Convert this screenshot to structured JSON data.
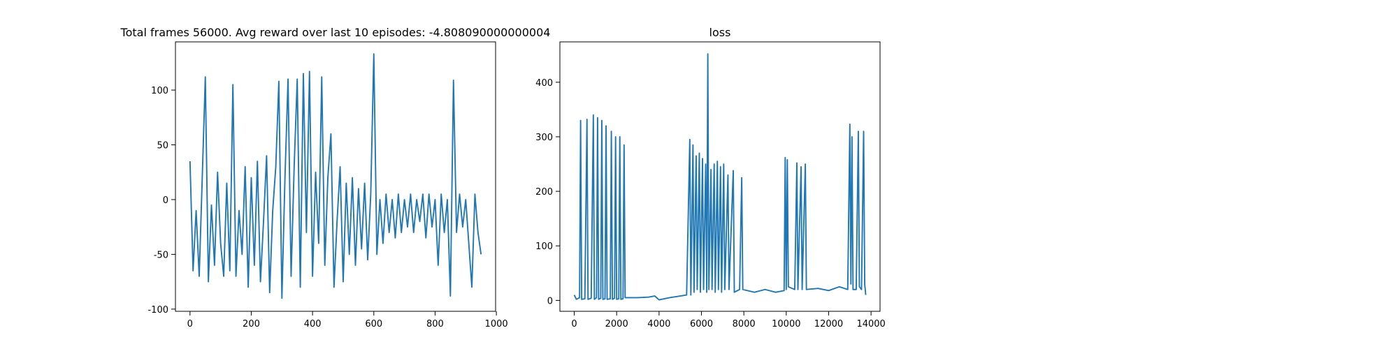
{
  "chart_data": [
    {
      "type": "line",
      "title": "Total frames 56000. Avg reward over last 10 episodes: -4.808090000000004",
      "x": [
        0,
        10,
        20,
        30,
        40,
        50,
        60,
        70,
        80,
        90,
        100,
        110,
        120,
        130,
        140,
        150,
        160,
        170,
        180,
        190,
        200,
        210,
        220,
        230,
        240,
        250,
        260,
        270,
        280,
        290,
        300,
        310,
        320,
        330,
        340,
        350,
        360,
        370,
        380,
        390,
        400,
        410,
        420,
        430,
        440,
        450,
        460,
        470,
        480,
        490,
        500,
        510,
        520,
        530,
        540,
        550,
        560,
        570,
        580,
        590,
        600,
        610,
        620,
        630,
        640,
        650,
        660,
        670,
        680,
        690,
        700,
        710,
        720,
        730,
        740,
        750,
        760,
        770,
        780,
        790,
        800,
        810,
        820,
        830,
        840,
        850,
        860,
        870,
        880,
        890,
        900,
        910,
        920,
        930,
        940,
        950
      ],
      "series": [
        {
          "name": "reward",
          "color": "#1f77b4",
          "values": [
            35,
            -65,
            -10,
            -70,
            20,
            112,
            -75,
            -5,
            -60,
            25,
            -40,
            -70,
            15,
            -65,
            105,
            -70,
            -10,
            -50,
            30,
            -80,
            20,
            -60,
            35,
            -75,
            -20,
            40,
            -85,
            -10,
            30,
            108,
            -90,
            20,
            110,
            -70,
            30,
            110,
            -80,
            115,
            -30,
            117,
            -70,
            25,
            -40,
            112,
            -60,
            20,
            60,
            -80,
            -20,
            30,
            -75,
            15,
            -50,
            20,
            -60,
            10,
            -45,
            15,
            -55,
            5,
            133,
            -50,
            0,
            -40,
            5,
            -30,
            0,
            -35,
            5,
            -30,
            0,
            -25,
            5,
            -30,
            0,
            -20,
            5,
            -35,
            5,
            -25,
            0,
            -60,
            5,
            -30,
            0,
            -88,
            109,
            -30,
            5,
            -25,
            0,
            -40,
            -80,
            5,
            -30,
            -50
          ]
        }
      ],
      "xlim": [
        -47.5,
        997.5
      ],
      "xticks": [
        0,
        200,
        400,
        600,
        800,
        1000
      ],
      "ylim": [
        -102,
        144
      ],
      "yticks": [
        -100,
        -50,
        0,
        50,
        100
      ]
    },
    {
      "type": "line",
      "title": "loss",
      "x": [
        0,
        100,
        250,
        300,
        350,
        500,
        600,
        650,
        800,
        900,
        950,
        1050,
        1100,
        1150,
        1250,
        1300,
        1350,
        1450,
        1500,
        1550,
        1700,
        1750,
        1800,
        1900,
        1950,
        2000,
        2100,
        2150,
        2200,
        2300,
        2350,
        2400,
        3000,
        3500,
        3800,
        4000,
        4500,
        5000,
        5300,
        5450,
        5500,
        5600,
        5650,
        5750,
        5800,
        5900,
        5950,
        6050,
        6100,
        6200,
        6250,
        6300,
        6350,
        6450,
        6500,
        6600,
        6650,
        6750,
        6800,
        6900,
        6950,
        7050,
        7100,
        7250,
        7300,
        7500,
        7550,
        7800,
        7900,
        7950,
        8500,
        9000,
        9500,
        9900,
        9950,
        10000,
        10050,
        10100,
        10400,
        10500,
        10550,
        10700,
        10750,
        10900,
        10950,
        11500,
        12000,
        12500,
        12900,
        13000,
        13050,
        13100,
        13150,
        13300,
        13400,
        13450,
        13550,
        13650,
        13700,
        13750
      ],
      "series": [
        {
          "name": "loss",
          "color": "#1f77b4",
          "values": [
            10,
            2,
            5,
            330,
            2,
            3,
            332,
            2,
            4,
            340,
            2,
            5,
            335,
            2,
            4,
            330,
            2,
            3,
            320,
            2,
            3,
            310,
            2,
            4,
            300,
            2,
            3,
            300,
            2,
            3,
            285,
            5,
            5,
            6,
            8,
            1,
            5,
            8,
            10,
            295,
            10,
            285,
            15,
            265,
            20,
            270,
            15,
            260,
            20,
            250,
            15,
            452,
            20,
            240,
            20,
            250,
            15,
            255,
            20,
            245,
            15,
            250,
            20,
            230,
            20,
            238,
            15,
            20,
            225,
            20,
            15,
            20,
            15,
            18,
            262,
            20,
            258,
            25,
            20,
            252,
            20,
            245,
            20,
            250,
            20,
            22,
            18,
            25,
            20,
            323,
            30,
            300,
            20,
            20,
            310,
            25,
            20,
            310,
            30,
            10
          ]
        }
      ],
      "xlim": [
        -677,
        14424
      ],
      "xticks": [
        0,
        2000,
        4000,
        6000,
        8000,
        10000,
        12000,
        14000
      ],
      "ylim": [
        -20,
        474
      ],
      "yticks": [
        0,
        100,
        200,
        300,
        400
      ]
    }
  ]
}
